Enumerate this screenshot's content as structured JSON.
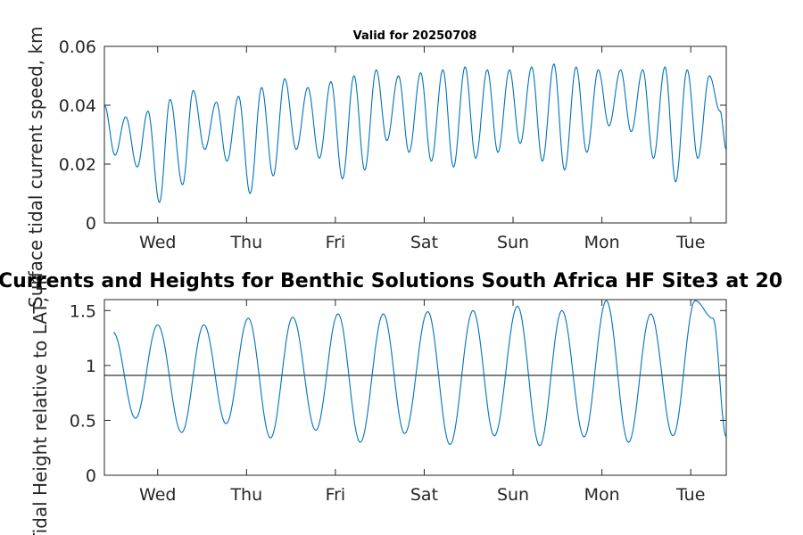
{
  "figure": {
    "title": "Valid for 20250708",
    "overlay_title": "Currents and Heights for Benthic Solutions South Africa HF Site3 at 20"
  },
  "chart_data": [
    {
      "type": "line",
      "ylabel": "Surface tidal current speed, km",
      "ylim": [
        0,
        0.06
      ],
      "yticks": [
        0,
        0.02,
        0.04,
        0.06
      ],
      "ytick_labels": [
        "0",
        "0.02",
        "0.04",
        "0.06"
      ],
      "xlim": [
        0,
        7.0
      ],
      "xticks": [
        0.6,
        1.6,
        2.6,
        3.6,
        4.6,
        5.6,
        6.6
      ],
      "xtick_labels": [
        "Wed",
        "Thu",
        "Fri",
        "Sat",
        "Sun",
        "Mon",
        "Tue"
      ],
      "series": [
        {
          "color": "#0072BD",
          "peaks": [
            [
              0.0,
              0.04
            ],
            [
              0.24,
              0.036
            ],
            [
              0.49,
              0.038
            ],
            [
              0.74,
              0.042
            ],
            [
              1.0,
              0.045
            ],
            [
              1.26,
              0.041
            ],
            [
              1.51,
              0.043
            ],
            [
              1.77,
              0.046
            ],
            [
              2.03,
              0.049
            ],
            [
              2.29,
              0.046
            ],
            [
              2.55,
              0.048
            ],
            [
              2.81,
              0.05
            ],
            [
              3.06,
              0.052
            ],
            [
              3.31,
              0.05
            ],
            [
              3.56,
              0.051
            ],
            [
              3.81,
              0.052
            ],
            [
              4.06,
              0.053
            ],
            [
              4.31,
              0.052
            ],
            [
              4.56,
              0.052
            ],
            [
              4.81,
              0.053
            ],
            [
              5.06,
              0.054
            ],
            [
              5.31,
              0.053
            ],
            [
              5.56,
              0.052
            ],
            [
              5.81,
              0.052
            ],
            [
              6.06,
              0.052
            ],
            [
              6.31,
              0.053
            ],
            [
              6.56,
              0.052
            ],
            [
              6.81,
              0.05
            ]
          ],
          "troughs": [
            [
              0.12,
              0.023
            ],
            [
              0.37,
              0.019
            ],
            [
              0.62,
              0.007
            ],
            [
              0.88,
              0.013
            ],
            [
              1.13,
              0.025
            ],
            [
              1.38,
              0.021
            ],
            [
              1.64,
              0.01
            ],
            [
              1.9,
              0.016
            ],
            [
              2.16,
              0.025
            ],
            [
              2.42,
              0.022
            ],
            [
              2.68,
              0.015
            ],
            [
              2.93,
              0.018
            ],
            [
              3.18,
              0.028
            ],
            [
              3.43,
              0.024
            ],
            [
              3.68,
              0.021
            ],
            [
              3.93,
              0.019
            ],
            [
              4.18,
              0.022
            ],
            [
              4.43,
              0.024
            ],
            [
              4.68,
              0.027
            ],
            [
              4.93,
              0.021
            ],
            [
              5.18,
              0.018
            ],
            [
              5.43,
              0.024
            ],
            [
              5.68,
              0.033
            ],
            [
              5.93,
              0.031
            ],
            [
              6.18,
              0.022
            ],
            [
              6.43,
              0.014
            ],
            [
              6.68,
              0.022
            ],
            [
              6.93,
              0.038
            ],
            [
              7.0,
              0.025
            ]
          ]
        }
      ]
    },
    {
      "type": "line",
      "ylabel": "Tidal Height relative to LAT, m",
      "ylim": [
        0,
        1.6
      ],
      "yticks": [
        0,
        0.5,
        1,
        1.5
      ],
      "ytick_labels": [
        "0",
        "0.5",
        "1",
        "1.5"
      ],
      "xlim": [
        0,
        7.0
      ],
      "xticks": [
        0.6,
        1.6,
        2.6,
        3.6,
        4.6,
        5.6,
        6.6
      ],
      "xtick_labels": [
        "Wed",
        "Thu",
        "Fri",
        "Sat",
        "Sun",
        "Mon",
        "Tue"
      ],
      "reference_value": 0.91,
      "series": [
        {
          "color": "#0072BD",
          "peaks": [
            [
              0.1,
              1.3
            ],
            [
              0.6,
              1.37
            ],
            [
              1.12,
              1.37
            ],
            [
              1.62,
              1.43
            ],
            [
              2.12,
              1.44
            ],
            [
              2.63,
              1.47
            ],
            [
              3.14,
              1.47
            ],
            [
              3.64,
              1.49
            ],
            [
              4.15,
              1.5
            ],
            [
              4.65,
              1.54
            ],
            [
              5.15,
              1.5
            ],
            [
              5.65,
              1.59
            ],
            [
              6.15,
              1.47
            ],
            [
              6.65,
              1.59
            ],
            [
              6.85,
              1.43
            ]
          ],
          "troughs": [
            [
              0.35,
              0.52
            ],
            [
              0.87,
              0.39
            ],
            [
              1.37,
              0.47
            ],
            [
              1.87,
              0.34
            ],
            [
              2.38,
              0.41
            ],
            [
              2.88,
              0.3
            ],
            [
              3.38,
              0.38
            ],
            [
              3.89,
              0.28
            ],
            [
              4.39,
              0.36
            ],
            [
              4.9,
              0.27
            ],
            [
              5.4,
              0.35
            ],
            [
              5.9,
              0.3
            ],
            [
              6.4,
              0.36
            ],
            [
              7.0,
              0.35
            ]
          ]
        }
      ]
    }
  ]
}
